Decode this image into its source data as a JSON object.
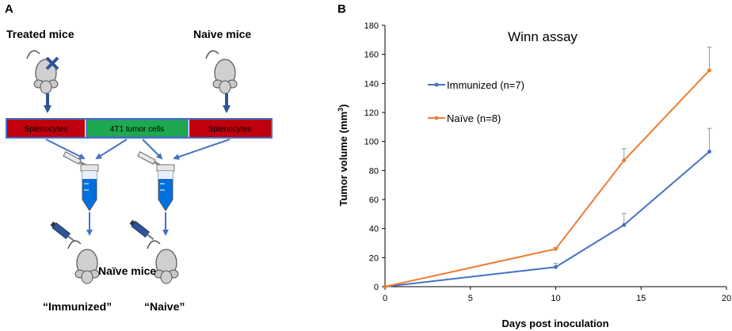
{
  "panel_a": {
    "label": "A",
    "treated_mice": "Treated mice",
    "naive_mice_top": "Naive mice",
    "bar_splenocytes_left": "Splenocytes",
    "bar_tumor_cells": "4T1 tumor cells",
    "bar_splenocytes_right": "Splenocytes",
    "naive_mice_bottom": "Naïve mice",
    "label_immunized": "“Immunized”",
    "label_naive": "“Naive”",
    "colors": {
      "red": "#c0000f",
      "green": "#1ea84f",
      "arrow": "#4472c4",
      "tube_liquid": "#0070e0",
      "dark_arrow": "#2f5597"
    }
  },
  "panel_b": {
    "label": "B"
  },
  "chart_data": {
    "type": "line",
    "title": "Winn assay",
    "xlabel": "Days post inoculation",
    "ylabel": "Tumor volume (mm³)",
    "ylabel_main": "Tumor volume (mm",
    "ylabel_sup": "3",
    "ylabel_end": ")",
    "xlim": [
      0,
      20
    ],
    "ylim": [
      0,
      180
    ],
    "xticks": [
      0,
      5,
      10,
      15,
      20
    ],
    "yticks": [
      0,
      20,
      40,
      60,
      80,
      100,
      120,
      140,
      160,
      180
    ],
    "grid": false,
    "legend_position": "left-center",
    "series": [
      {
        "name": "Immunized (n=7)",
        "color": "#4472c4",
        "x": [
          0,
          10,
          14,
          19
        ],
        "y": [
          0,
          13.5,
          42.5,
          93
        ],
        "err": [
          0,
          2.5,
          8,
          16
        ]
      },
      {
        "name": "Naïve (n=8)",
        "color": "#ed7d31",
        "x": [
          0,
          10,
          14,
          19
        ],
        "y": [
          0,
          26,
          87,
          149
        ],
        "err": [
          0,
          1,
          8,
          16
        ]
      }
    ]
  }
}
